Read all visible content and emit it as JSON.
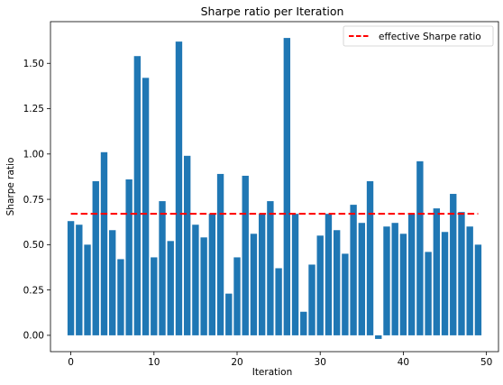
{
  "chart_data": {
    "type": "bar",
    "title": "Sharpe ratio per Iteration",
    "xlabel": "Iteration",
    "ylabel": "Sharpe ratio",
    "x": [
      0,
      1,
      2,
      3,
      4,
      5,
      6,
      7,
      8,
      9,
      10,
      11,
      12,
      13,
      14,
      15,
      16,
      17,
      18,
      19,
      20,
      21,
      22,
      23,
      24,
      25,
      26,
      27,
      28,
      29,
      30,
      31,
      32,
      33,
      34,
      35,
      36,
      37,
      38,
      39,
      40,
      41,
      42,
      43,
      44,
      45,
      46,
      47,
      48,
      49
    ],
    "values": [
      0.63,
      0.61,
      0.5,
      0.85,
      1.01,
      0.58,
      0.42,
      0.86,
      1.54,
      1.42,
      0.43,
      0.74,
      0.52,
      1.62,
      0.99,
      0.61,
      0.54,
      0.67,
      0.89,
      0.23,
      0.43,
      0.88,
      0.56,
      0.67,
      0.74,
      0.37,
      1.64,
      0.67,
      0.13,
      0.39,
      0.55,
      0.67,
      0.58,
      0.45,
      0.72,
      0.62,
      0.85,
      -0.02,
      0.6,
      0.62,
      0.56,
      0.67,
      0.96,
      0.46,
      0.7,
      0.57,
      0.78,
      0.68,
      0.6,
      0.5
    ],
    "bar_color": "#1f77b4",
    "reference_line": {
      "name": "effective Sharpe ratio",
      "y": 0.67,
      "x_range": [
        0,
        49
      ],
      "color": "#ff0000",
      "style": "dashed"
    },
    "xlim": [
      -2.45,
      51.45
    ],
    "ylim": [
      -0.09,
      1.73
    ],
    "x_ticks": [
      0,
      10,
      20,
      30,
      40,
      50
    ],
    "x_tick_labels": [
      "0",
      "10",
      "20",
      "30",
      "40",
      "50"
    ],
    "y_ticks": [
      0.0,
      0.25,
      0.5,
      0.75,
      1.0,
      1.25,
      1.5
    ],
    "y_tick_labels": [
      "0.00",
      "0.25",
      "0.50",
      "0.75",
      "1.00",
      "1.25",
      "1.50"
    ],
    "grid": false,
    "legend_position": "top-right"
  }
}
